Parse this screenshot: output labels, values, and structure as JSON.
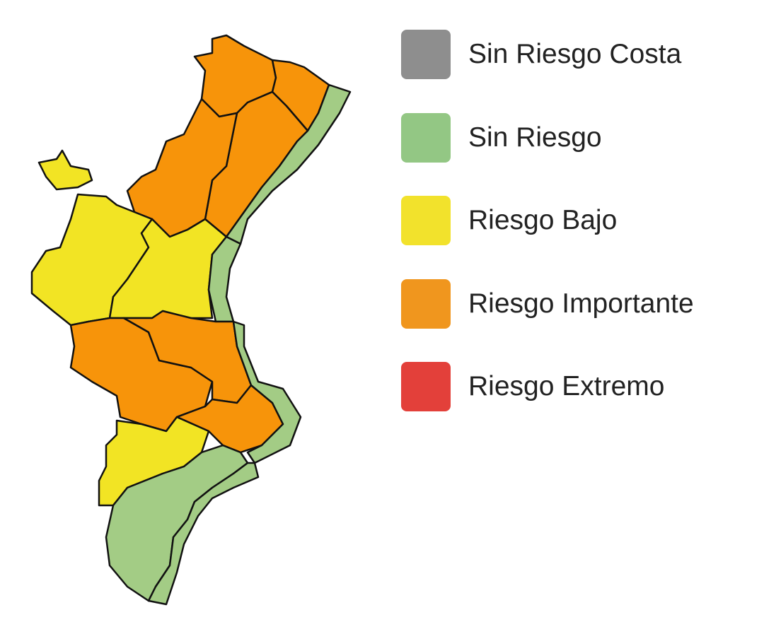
{
  "legend": [
    {
      "label": "Sin Riesgo Costa",
      "color": "#8e8e8e"
    },
    {
      "label": "Sin Riesgo",
      "color": "#93c784"
    },
    {
      "label": "Riesgo Bajo",
      "color": "#f2e22c"
    },
    {
      "label": "Riesgo Importante",
      "color": "#f0961e"
    },
    {
      "label": "Riesgo Extremo",
      "color": "#e3403a"
    }
  ],
  "map_fill": {
    "orange": "#f7940a",
    "yellow": "#f2e424",
    "green": "#a3cc85"
  }
}
